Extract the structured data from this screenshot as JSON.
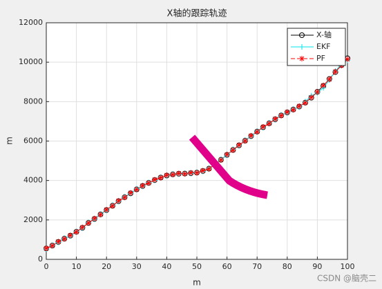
{
  "chart_data": {
    "type": "line",
    "title": "X轴的跟踪轨迹",
    "xlabel": "m",
    "ylabel": "m",
    "x": [
      0,
      2,
      4,
      6,
      8,
      10,
      12,
      14,
      16,
      18,
      20,
      22,
      24,
      26,
      28,
      30,
      32,
      34,
      36,
      38,
      40,
      42,
      44,
      46,
      48,
      50,
      52,
      54,
      56,
      58,
      60,
      62,
      64,
      66,
      68,
      70,
      72,
      74,
      76,
      78,
      80,
      82,
      84,
      86,
      88,
      90,
      92,
      94,
      96,
      98,
      100
    ],
    "series": [
      {
        "name": "X-轴",
        "color": "#000000",
        "marker": "o",
        "line_style": "-",
        "values": [
          550,
          700,
          880,
          1050,
          1200,
          1400,
          1600,
          1850,
          2050,
          2280,
          2500,
          2720,
          2950,
          3150,
          3350,
          3550,
          3720,
          3880,
          4020,
          4150,
          4250,
          4310,
          4340,
          4350,
          4370,
          4400,
          4480,
          4600,
          4800,
          5050,
          5300,
          5550,
          5780,
          6020,
          6250,
          6480,
          6700,
          6900,
          7100,
          7300,
          7450,
          7600,
          7750,
          7950,
          8200,
          8500,
          8800,
          9150,
          9500,
          9850,
          10200
        ]
      },
      {
        "name": "EKF",
        "color": "#00e5ee",
        "marker": "+",
        "line_style": "-",
        "values": [
          520,
          720,
          860,
          1080,
          1180,
          1420,
          1580,
          1880,
          2030,
          2300,
          2480,
          2750,
          2930,
          3180,
          3330,
          3580,
          3700,
          3900,
          4000,
          4170,
          4240,
          4330,
          4320,
          4370,
          4350,
          4420,
          4460,
          4630,
          4780,
          5080,
          5280,
          5580,
          5760,
          6050,
          6230,
          6510,
          6680,
          6930,
          7080,
          7330,
          7430,
          7630,
          7720,
          8000,
          8300,
          8450,
          8700,
          9100,
          9550,
          9900,
          10100
        ]
      },
      {
        "name": "PF",
        "color": "#ff0000",
        "marker": "*",
        "line_style": "--",
        "values": [
          560,
          690,
          900,
          1040,
          1220,
          1390,
          1620,
          1840,
          2070,
          2270,
          2520,
          2710,
          2970,
          3140,
          3370,
          3540,
          3740,
          3870,
          4040,
          4140,
          4270,
          4300,
          4360,
          4340,
          4390,
          4390,
          4500,
          4590,
          4820,
          5040,
          5320,
          5540,
          5800,
          6010,
          6270,
          6470,
          6720,
          6890,
          7120,
          7290,
          7470,
          7590,
          7770,
          7940,
          8220,
          8490,
          8820,
          9130,
          9520,
          9830,
          10150
        ]
      }
    ],
    "xlim": [
      0,
      100
    ],
    "ylim": [
      0,
      12000
    ],
    "xticks": [
      0,
      10,
      20,
      30,
      40,
      50,
      60,
      70,
      80,
      90,
      100
    ],
    "yticks": [
      0,
      2000,
      4000,
      6000,
      8000,
      10000,
      12000
    ],
    "grid": true,
    "legend": "northeast",
    "watermark": "CSDN @脑壳二"
  }
}
